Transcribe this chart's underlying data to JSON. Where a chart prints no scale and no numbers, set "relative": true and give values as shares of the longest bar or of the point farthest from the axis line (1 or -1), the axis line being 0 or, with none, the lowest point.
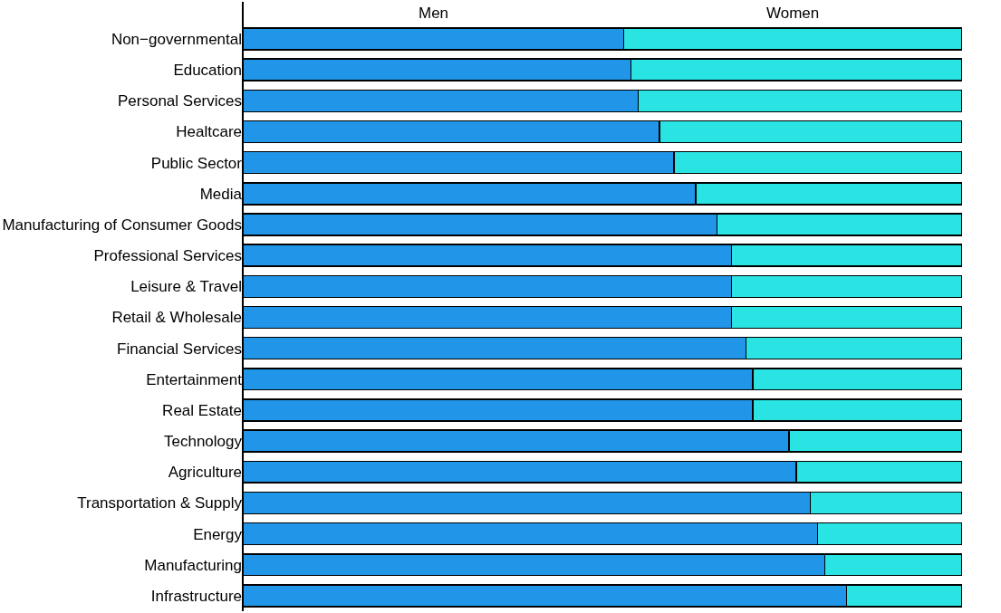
{
  "chart_data": {
    "type": "bar",
    "orientation": "horizontal",
    "stacked": true,
    "relative": true,
    "legend": false,
    "grid": false,
    "categories": [
      "Non−governmental",
      "Education",
      "Personal Services",
      "Healtcare",
      "Public Sector",
      "Media",
      "Manufacturing of Consumer Goods",
      "Professional Services",
      "Leisure & Travel",
      "Retail & Wholesale",
      "Financial Services",
      "Entertainment",
      "Real Estate",
      "Technology",
      "Agriculture",
      "Transportation & Supply",
      "Energy",
      "Manufacturing",
      "Infrastructure"
    ],
    "series": [
      {
        "name": "Men",
        "color": "#2196e8",
        "values": [
          0.53,
          0.54,
          0.55,
          0.58,
          0.6,
          0.63,
          0.66,
          0.68,
          0.68,
          0.68,
          0.7,
          0.71,
          0.71,
          0.76,
          0.77,
          0.79,
          0.8,
          0.81,
          0.84
        ]
      },
      {
        "name": "Women",
        "color": "#2ae3e3",
        "values": [
          0.47,
          0.46,
          0.45,
          0.42,
          0.4,
          0.37,
          0.34,
          0.32,
          0.32,
          0.32,
          0.3,
          0.29,
          0.29,
          0.24,
          0.23,
          0.21,
          0.2,
          0.19,
          0.16
        ]
      }
    ]
  }
}
